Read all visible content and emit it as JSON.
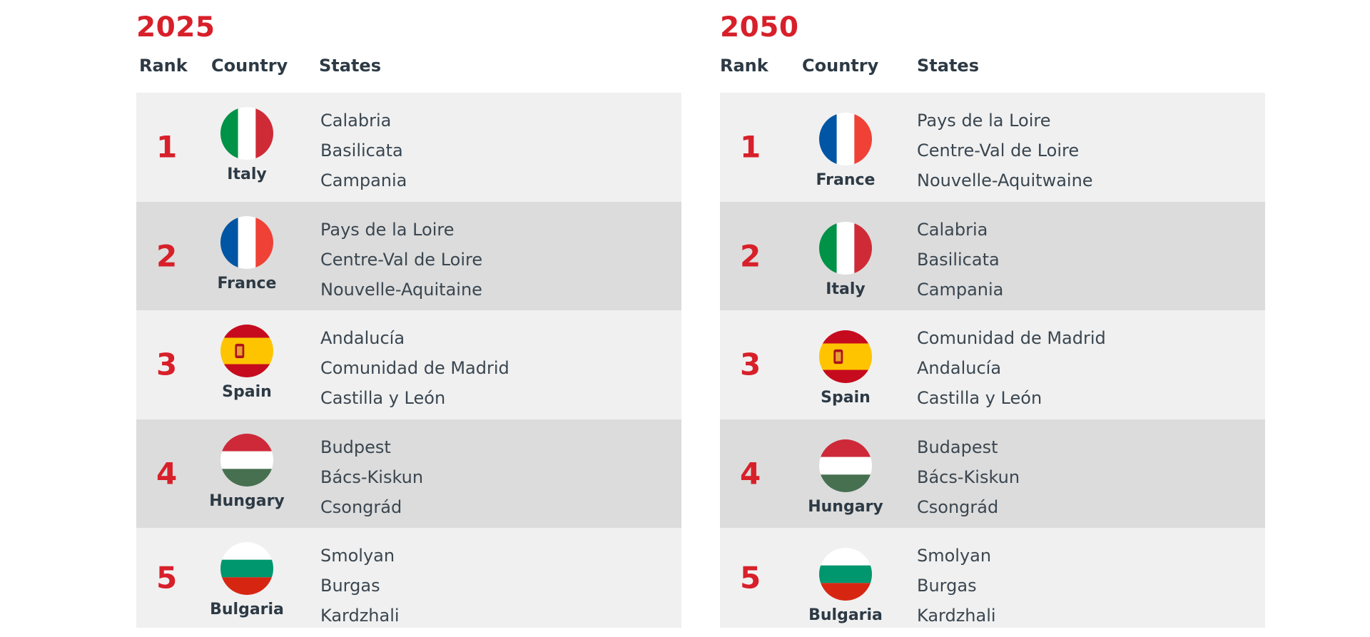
{
  "panels": [
    {
      "year": "2025",
      "headers": {
        "rank": "Rank",
        "country": "Country",
        "states": "States"
      },
      "rows": [
        {
          "rank": "1",
          "country": "Italy",
          "flag": "italy-flag-icon",
          "states": [
            "Calabria",
            "Basilicata",
            "Campania"
          ]
        },
        {
          "rank": "2",
          "country": "France",
          "flag": "france-flag-icon",
          "states": [
            "Pays de la Loire",
            "Centre-Val de Loire",
            "Nouvelle-Aquitaine"
          ]
        },
        {
          "rank": "3",
          "country": "Spain",
          "flag": "spain-flag-icon",
          "states": [
            "Andalucía",
            "Comunidad de Madrid",
            "Castilla y León"
          ]
        },
        {
          "rank": "4",
          "country": "Hungary",
          "flag": "hungary-flag-icon",
          "states": [
            "Budpest",
            "Bács-Kiskun",
            "Csongrád"
          ]
        },
        {
          "rank": "5",
          "country": "Bulgaria",
          "flag": "bulgaria-flag-icon",
          "states": [
            "Smolyan",
            "Burgas",
            "Kardzhali"
          ]
        }
      ]
    },
    {
      "year": "2050",
      "headers": {
        "rank": "Rank",
        "country": "Country",
        "states": "States"
      },
      "rows": [
        {
          "rank": "1",
          "country": "France",
          "flag": "france-flag-icon",
          "states": [
            "Pays de la Loire",
            "Centre-Val de Loire",
            "Nouvelle-Aquitwaine"
          ]
        },
        {
          "rank": "2",
          "country": "Italy",
          "flag": "italy-flag-icon",
          "states": [
            "Calabria",
            "Basilicata",
            "Campania"
          ]
        },
        {
          "rank": "3",
          "country": "Spain",
          "flag": "spain-flag-icon",
          "states": [
            "Comunidad de Madrid",
            "Andalucía",
            "Castilla y León"
          ]
        },
        {
          "rank": "4",
          "country": "Hungary",
          "flag": "hungary-flag-icon",
          "states": [
            "Budapest",
            "Bács-Kiskun",
            "Csongrád"
          ]
        },
        {
          "rank": "5",
          "country": "Bulgaria",
          "flag": "bulgaria-flag-icon",
          "states": [
            "Smolyan",
            "Burgas",
            "Kardzhali"
          ]
        }
      ]
    }
  ],
  "colors": {
    "accent_red": "#d7202a",
    "text_dark": "#2d3a45",
    "row_light": "#f0f0f0",
    "row_dark": "#dcdcdc"
  }
}
